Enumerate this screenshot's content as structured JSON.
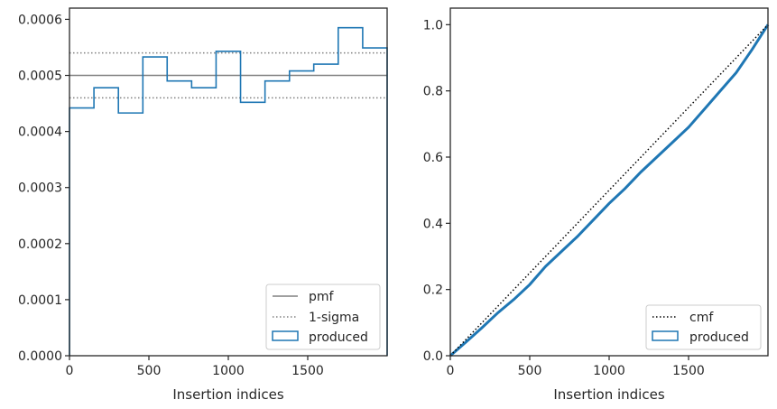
{
  "chart_data": [
    {
      "type": "line",
      "xlabel": "Insertion indices",
      "ylabel": "",
      "xlim": [
        0,
        2000
      ],
      "ylim": [
        0,
        0.00062
      ],
      "xticks": [
        0,
        500,
        1000,
        1500
      ],
      "xtick_labels": [
        "0",
        "500",
        "1000",
        "1500"
      ],
      "yticks": [
        0,
        0.0001,
        0.0002,
        0.0003,
        0.0004,
        0.0005,
        0.0006
      ],
      "ytick_labels": [
        "0.0000",
        "0.0001",
        "0.0002",
        "0.0003",
        "0.0004",
        "0.0005",
        "0.0006"
      ],
      "grid": false,
      "legend_position": "bottom-right",
      "legend": [
        "pmf",
        "1-sigma",
        "produced"
      ],
      "pmf": 0.0005,
      "sigma_lines": [
        0.00046,
        0.00054
      ],
      "histogram": {
        "name": "produced",
        "bin_edges": [
          0,
          154,
          308,
          462,
          615,
          769,
          923,
          1077,
          1231,
          1385,
          1538,
          1692,
          1846,
          2000
        ],
        "values": [
          0.000442,
          0.000478,
          0.000433,
          0.000533,
          0.00049,
          0.000478,
          0.000543,
          0.000452,
          0.00049,
          0.000508,
          0.00052,
          0.000585,
          0.000549
        ]
      },
      "colors": {
        "pmf": "#808080",
        "sigma": "#808080",
        "produced": "#1f77b4"
      }
    },
    {
      "type": "line",
      "xlabel": "Insertion indices",
      "ylabel": "",
      "xlim": [
        0,
        2000
      ],
      "ylim": [
        0,
        1.05
      ],
      "xticks": [
        0,
        500,
        1000,
        1500
      ],
      "xtick_labels": [
        "0",
        "500",
        "1000",
        "1500"
      ],
      "yticks": [
        0,
        0.2,
        0.4,
        0.6,
        0.8,
        1.0
      ],
      "ytick_labels": [
        "0.0",
        "0.2",
        "0.4",
        "0.6",
        "0.8",
        "1.0"
      ],
      "grid": false,
      "legend_position": "bottom-right",
      "legend": [
        "cmf",
        "produced"
      ],
      "cmf": {
        "x": [
          0,
          2000
        ],
        "y": [
          0,
          1.0
        ]
      },
      "produced": {
        "x": [
          0,
          100,
          200,
          300,
          400,
          500,
          600,
          700,
          800,
          900,
          1000,
          1100,
          1200,
          1300,
          1400,
          1500,
          1600,
          1700,
          1800,
          1900,
          2000
        ],
        "y": [
          0,
          0.042,
          0.085,
          0.13,
          0.17,
          0.215,
          0.27,
          0.315,
          0.36,
          0.41,
          0.46,
          0.505,
          0.555,
          0.6,
          0.645,
          0.69,
          0.745,
          0.8,
          0.855,
          0.925,
          1.0
        ]
      },
      "colors": {
        "cmf": "#000000",
        "produced": "#1f77b4"
      }
    }
  ]
}
